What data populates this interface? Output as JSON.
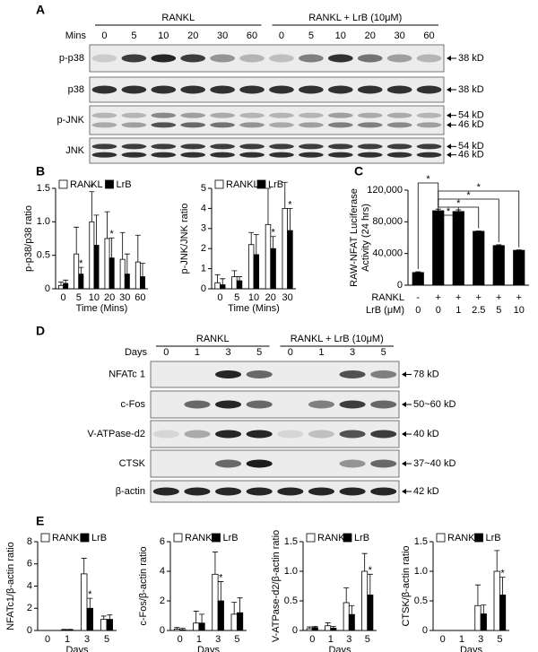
{
  "panel_labels": [
    "A",
    "B",
    "C",
    "D",
    "E"
  ],
  "blots": [
    {
      "groups": [
        "RANKL",
        "RANKL + LrB (10μM)"
      ],
      "lane_header": "Mins",
      "lanes": [
        "0",
        "5",
        "10",
        "20",
        "30",
        "60",
        "0",
        "5",
        "10",
        "20",
        "30",
        "60"
      ],
      "rows": [
        {
          "label": "p-p38",
          "markers": [
            "38 kD"
          ]
        },
        {
          "label": "p38",
          "markers": [
            "38 kD"
          ]
        },
        {
          "label": "p-JNK",
          "markers": [
            "54 kD",
            "46 kD"
          ]
        },
        {
          "label": "JNK",
          "markers": [
            "54 kD",
            "46 kD"
          ]
        }
      ]
    },
    {
      "groups": [
        "RANKL",
        "RANKL + LrB (10μM)"
      ],
      "lane_header": "Days",
      "lanes": [
        "0",
        "1",
        "3",
        "5",
        "0",
        "1",
        "3",
        "5"
      ],
      "rows": [
        {
          "label": "NFATc 1",
          "markers": [
            "78 kD"
          ]
        },
        {
          "label": "c-Fos",
          "markers": [
            "50~60 kD"
          ]
        },
        {
          "label": "V-ATPase-d2",
          "markers": [
            "40 kD"
          ]
        },
        {
          "label": "CTSK",
          "markers": [
            "37~40 kD"
          ]
        },
        {
          "label": "β-actin",
          "markers": [
            "42 kD"
          ]
        }
      ]
    }
  ],
  "chart_data": [
    {
      "type": "bar",
      "ylabel": "p-p38/p38 ratio",
      "xlabel": "Time (Mins)",
      "categories": [
        "0",
        "5",
        "10",
        "20",
        "30",
        "60"
      ],
      "series": [
        {
          "name": "RANKL",
          "color": "#ffffff",
          "values": [
            0.05,
            0.52,
            1.0,
            0.75,
            0.44,
            0.4
          ],
          "errors": [
            0.05,
            0.4,
            0.45,
            0.4,
            0.4,
            0.4
          ]
        },
        {
          "name": "LrB",
          "color": "#000000",
          "values": [
            0.08,
            0.22,
            0.65,
            0.46,
            0.22,
            0.18
          ],
          "errors": [
            0.05,
            0.1,
            0.45,
            0.3,
            0.3,
            0.2
          ]
        }
      ],
      "ylim": [
        0,
        1.5
      ],
      "yticks": [
        0,
        0.5,
        {
          "value": 1,
          "label": "1.0"
        },
        1.5
      ],
      "annotations": [
        {
          "text": "*",
          "category_index": 1,
          "series_index": 1
        },
        {
          "text": "*",
          "category_index": 2,
          "series_index": 0
        },
        {
          "text": "*",
          "category_index": 3,
          "series_index": 1
        }
      ]
    },
    {
      "type": "bar",
      "ylabel": "p-JNK/JNK ratio",
      "xlabel": "Time (Mins)",
      "categories": [
        "0",
        "5",
        "10",
        "20",
        "30"
      ],
      "series": [
        {
          "name": "RANKL",
          "color": "#ffffff",
          "values": [
            0.3,
            0.6,
            2.2,
            3.2,
            4.0
          ],
          "errors": [
            0.4,
            0.3,
            0.6,
            1.8,
            1.3
          ]
        },
        {
          "name": "LrB",
          "color": "#000000",
          "values": [
            0.2,
            0.4,
            1.7,
            2.0,
            2.9
          ],
          "errors": [
            0.3,
            0.2,
            1.0,
            0.6,
            1.1
          ]
        }
      ],
      "ylim": [
        0,
        5
      ],
      "yticks": [
        0,
        1,
        2,
        3,
        4,
        5
      ],
      "annotations": [
        {
          "text": "*",
          "category_index": 3,
          "series_index": 1
        },
        {
          "text": "*",
          "category_index": 4,
          "series_index": 1
        }
      ]
    },
    {
      "type": "bar",
      "ylabel": [
        "RAW-NFAT Luciferase",
        "Activity (24 hrs)"
      ],
      "color": "#000000",
      "values": [
        16000,
        94000,
        93000,
        68000,
        50000,
        44000
      ],
      "errors": [
        1000,
        2000,
        2000,
        500,
        1000,
        500
      ],
      "x_label_rows": [
        {
          "label": "RANKL",
          "values": [
            "-",
            "+",
            "+",
            "+",
            "+",
            "+"
          ]
        },
        {
          "label": "LrB (μM)",
          "values": [
            "0",
            "0",
            "1",
            "2.5",
            "5",
            "10"
          ]
        }
      ],
      "ylim": [
        0,
        120000
      ],
      "yticks": [
        0,
        {
          "value": 40000,
          "label": "40,000"
        },
        {
          "value": 80000,
          "label": "80,000"
        },
        {
          "value": 120000,
          "label": "120,000"
        }
      ],
      "comparisons": [
        {
          "pair": [
            0,
            1
          ],
          "text": "*"
        },
        {
          "pair": [
            1,
            5
          ],
          "text": "*"
        },
        {
          "pair": [
            1,
            4
          ],
          "text": "*"
        },
        {
          "pair": [
            1,
            3
          ],
          "text": "*"
        },
        {
          "pair": [
            1,
            2
          ],
          "text": "*"
        }
      ]
    },
    {
      "type": "bar",
      "ylabel": "NFATc1/β-actin ratio",
      "xlabel": "Days",
      "categories": [
        "0",
        "1",
        "3",
        "5"
      ],
      "series": [
        {
          "name": "RANKL",
          "color": "#ffffff",
          "values": [
            0,
            0.05,
            5.1,
            1.0
          ],
          "errors": [
            0,
            0.05,
            1.4,
            0.3
          ]
        },
        {
          "name": "LrB",
          "color": "#000000",
          "values": [
            0,
            0.05,
            2.0,
            1.0
          ],
          "errors": [
            0,
            0.05,
            0.9,
            0.4
          ]
        }
      ],
      "ylim": [
        0,
        8
      ],
      "yticks": [
        0,
        2,
        4,
        6,
        8
      ],
      "annotations": [
        {
          "text": "*",
          "category_index": 2,
          "series_index": 1
        }
      ]
    },
    {
      "type": "bar",
      "ylabel": "c-Fos/β-actin ratio",
      "xlabel": "Days",
      "categories": [
        "0",
        "1",
        "3",
        "5"
      ],
      "series": [
        {
          "name": "RANKL",
          "color": "#ffffff",
          "values": [
            0.1,
            0.5,
            3.8,
            1.1
          ],
          "errors": [
            0.1,
            0.8,
            1.5,
            0.8
          ]
        },
        {
          "name": "LrB",
          "color": "#000000",
          "values": [
            0.05,
            0.5,
            2.0,
            1.2
          ],
          "errors": [
            0.1,
            0.6,
            1.3,
            1.0
          ]
        }
      ],
      "ylim": [
        0,
        6
      ],
      "yticks": [
        0,
        2,
        4,
        6
      ],
      "annotations": [
        {
          "text": "*",
          "category_index": 2,
          "series_index": 1
        }
      ]
    },
    {
      "type": "bar",
      "ylabel": "V-ATPase-d2/β-actin ratio",
      "xlabel": "Days",
      "categories": [
        "0",
        "1",
        "3",
        "5"
      ],
      "series": [
        {
          "name": "RANKL",
          "color": "#ffffff",
          "values": [
            0.03,
            0.08,
            0.47,
            1.0
          ],
          "errors": [
            0.03,
            0.05,
            0.25,
            0.3
          ]
        },
        {
          "name": "LrB",
          "color": "#000000",
          "values": [
            0.05,
            0.04,
            0.27,
            0.6
          ],
          "errors": [
            0.02,
            0.03,
            0.15,
            0.35
          ]
        }
      ],
      "ylim": [
        0,
        1.5
      ],
      "yticks": [
        0,
        0.5,
        {
          "value": 1,
          "label": "1.0"
        },
        1.5
      ],
      "annotations": [
        {
          "text": "*",
          "category_index": 3,
          "series_index": 1
        }
      ]
    },
    {
      "type": "bar",
      "ylabel": "CTSK/β-actin ratio",
      "xlabel": "Days",
      "categories": [
        "0",
        "1",
        "3",
        "5"
      ],
      "series": [
        {
          "name": "RANKL",
          "color": "#ffffff",
          "values": [
            0,
            0,
            0.42,
            1.0
          ],
          "errors": [
            0,
            0,
            0.35,
            0.35
          ]
        },
        {
          "name": "LrB",
          "color": "#000000",
          "values": [
            0,
            0,
            0.28,
            0.6
          ],
          "errors": [
            0,
            0,
            0.15,
            0.3
          ]
        }
      ],
      "ylim": [
        0,
        1.5
      ],
      "yticks": [
        0,
        0.5,
        {
          "value": 1,
          "label": "1.0"
        },
        1.5
      ],
      "annotations": [
        {
          "text": "*",
          "category_index": 3,
          "series_index": 1
        }
      ]
    }
  ]
}
